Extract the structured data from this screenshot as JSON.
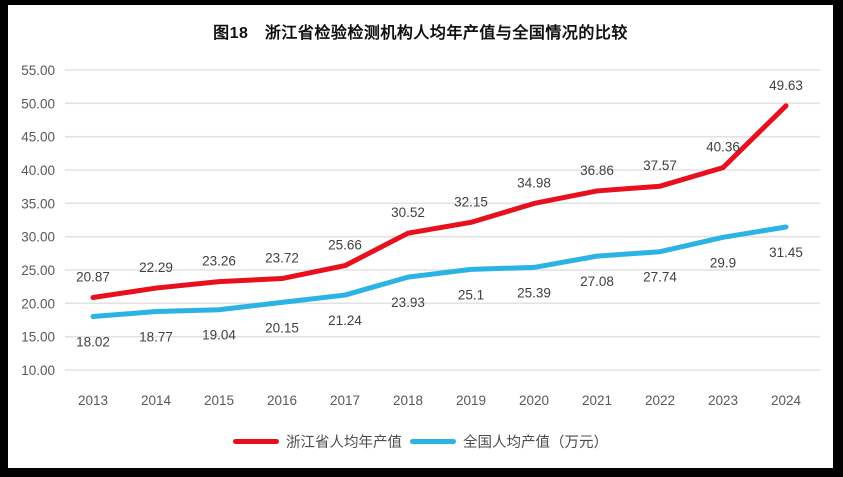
{
  "chart_data": {
    "type": "line",
    "title": "图18　浙江省检验检测机构人均年产值与全国情况的比较",
    "categories": [
      "2013",
      "2014",
      "2015",
      "2016",
      "2017",
      "2018",
      "2019",
      "2020",
      "2021",
      "2022",
      "2023",
      "2024"
    ],
    "series": [
      {
        "name": "浙江省人均年产值",
        "color": "#e8101e",
        "values": [
          20.87,
          22.29,
          23.26,
          23.72,
          25.66,
          30.52,
          32.15,
          34.98,
          36.86,
          37.57,
          40.36,
          49.63
        ],
        "data_labels": [
          "20.87",
          "22.29",
          "23.26",
          "23.72",
          "25.66",
          "30.52",
          "32.15",
          "34.98",
          "36.86",
          "37.57",
          "40.36",
          "49.63"
        ],
        "label_side": "above"
      },
      {
        "name": "全国人均产值（万元）",
        "color": "#2bb3e6",
        "values": [
          18.02,
          18.77,
          19.04,
          20.15,
          21.24,
          23.93,
          25.1,
          25.39,
          27.08,
          27.74,
          29.9,
          31.45
        ],
        "data_labels": [
          "18.02",
          "18.77",
          "19.04",
          "20.15",
          "21.24",
          "23.93",
          "25.1",
          "25.39",
          "27.08",
          "27.74",
          "29.9",
          "31.45"
        ],
        "label_side": "below"
      }
    ],
    "y_ticks": [
      "55.00",
      "50.00",
      "45.00",
      "40.00",
      "35.00",
      "30.00",
      "25.00",
      "20.00",
      "15.00",
      "10.00"
    ],
    "ylim": [
      10,
      55
    ],
    "xlabel": "",
    "ylabel": "",
    "grid": true,
    "legend_position": "bottom",
    "colors": {
      "background": "#ffffff",
      "frame": "#000000",
      "gridline": "#e2e2e2",
      "axis_text": "#595959",
      "data_label_text": "#404040"
    }
  }
}
